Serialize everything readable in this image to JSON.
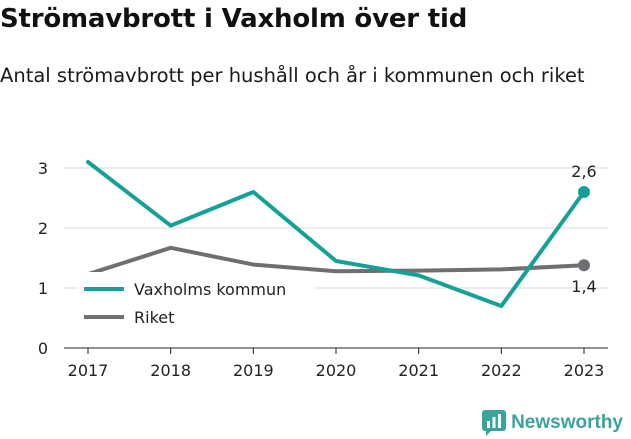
{
  "title": "Strömavbrott i Vaxholm över tid",
  "subtitle": "Antal strömavbrott per hushåll och år i kommunen och riket",
  "branding": {
    "name": "Newsworthy",
    "icon": "newsworthy-logo-icon",
    "color": "#3aa39b"
  },
  "chart_data": {
    "type": "line",
    "title": "Strömavbrott i Vaxholm över tid",
    "subtitle": "Antal strömavbrott per hushåll och år i kommunen och riket",
    "x": [
      "2017",
      "2018",
      "2019",
      "2020",
      "2021",
      "2022",
      "2023"
    ],
    "xlabel": "",
    "ylabel": "",
    "ylim": [
      0,
      3.3
    ],
    "yticks": [
      "0",
      "1",
      "2",
      "3"
    ],
    "grid": "horizontal",
    "legend_position": "bottom-left",
    "series": [
      {
        "name": "Vaxholms kommun",
        "color": "#15a196",
        "values": [
          3.1,
          2.04,
          2.6,
          1.45,
          1.21,
          0.7,
          2.6
        ],
        "end_label": "2,6"
      },
      {
        "name": "Riket",
        "color": "#6f6f73",
        "values": [
          1.23,
          1.67,
          1.39,
          1.28,
          1.29,
          1.31,
          1.38
        ],
        "end_label": "1,4"
      }
    ]
  }
}
